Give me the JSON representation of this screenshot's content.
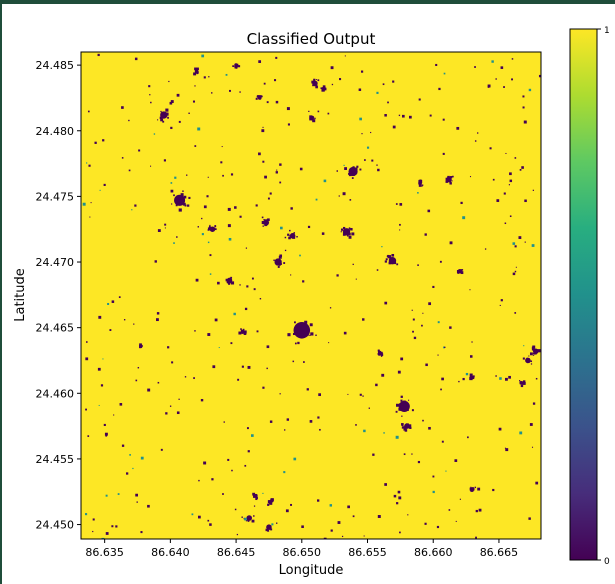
{
  "chart_data": {
    "type": "heatmap",
    "title": "Classified Output",
    "xlabel": "Longitude",
    "ylabel": "Latitude",
    "xlim": [
      86.6332,
      86.6682
    ],
    "ylim": [
      24.4489,
      24.486
    ],
    "x_ticks": [
      "86.635",
      "86.640",
      "86.645",
      "86.650",
      "86.655",
      "86.660",
      "86.665"
    ],
    "y_ticks": [
      "24.485",
      "24.480",
      "24.475",
      "24.470",
      "24.465",
      "24.460",
      "24.455",
      "24.450"
    ],
    "colorbar": {
      "colormap": "viridis",
      "min": 0,
      "max": 1,
      "tick_labels": [
        "0",
        "1"
      ]
    },
    "background_class": 1,
    "colors": {
      "class_1": "#fde725",
      "class_0": "#440154"
    },
    "class_0_patches": [
      {
        "lon": 86.6395,
        "lat": 24.4812,
        "r": 0.0004
      },
      {
        "lon": 86.6407,
        "lat": 24.4747,
        "r": 0.0006
      },
      {
        "lon": 86.642,
        "lat": 24.4845,
        "r": 0.0002
      },
      {
        "lon": 86.645,
        "lat": 24.4849,
        "r": 0.0002
      },
      {
        "lon": 86.6432,
        "lat": 24.4725,
        "r": 0.0003
      },
      {
        "lon": 86.6445,
        "lat": 24.4686,
        "r": 0.0003
      },
      {
        "lon": 86.6473,
        "lat": 24.473,
        "r": 0.0003
      },
      {
        "lon": 86.6493,
        "lat": 24.472,
        "r": 0.0003
      },
      {
        "lon": 86.6482,
        "lat": 24.47,
        "r": 0.0004
      },
      {
        "lon": 86.65,
        "lat": 24.4648,
        "r": 0.0009
      },
      {
        "lon": 86.651,
        "lat": 24.4836,
        "r": 0.0003
      },
      {
        "lon": 86.6517,
        "lat": 24.4832,
        "r": 0.0002
      },
      {
        "lon": 86.6534,
        "lat": 24.4723,
        "r": 0.0004
      },
      {
        "lon": 86.6539,
        "lat": 24.4769,
        "r": 0.0005
      },
      {
        "lon": 86.6569,
        "lat": 24.4701,
        "r": 0.0004
      },
      {
        "lon": 86.6559,
        "lat": 24.463,
        "r": 0.0002
      },
      {
        "lon": 86.6578,
        "lat": 24.459,
        "r": 0.0006
      },
      {
        "lon": 86.658,
        "lat": 24.4575,
        "r": 0.0003
      },
      {
        "lon": 86.6612,
        "lat": 24.4763,
        "r": 0.0003
      },
      {
        "lon": 86.662,
        "lat": 24.4693,
        "r": 0.0002
      },
      {
        "lon": 86.6678,
        "lat": 24.4632,
        "r": 0.0003
      },
      {
        "lon": 86.6672,
        "lat": 24.4625,
        "r": 0.0003
      },
      {
        "lon": 86.6667,
        "lat": 24.4608,
        "r": 0.0002
      },
      {
        "lon": 86.646,
        "lat": 24.4505,
        "r": 0.0003
      },
      {
        "lon": 86.6465,
        "lat": 24.4522,
        "r": 0.0002
      },
      {
        "lon": 86.6475,
        "lat": 24.4498,
        "r": 0.0003
      },
      {
        "lon": 86.6476,
        "lat": 24.4517,
        "r": 0.0002
      },
      {
        "lon": 86.6455,
        "lat": 24.4647,
        "r": 0.0002
      },
      {
        "lon": 86.6378,
        "lat": 24.4636,
        "r": 0.0001
      },
      {
        "lon": 86.663,
        "lat": 24.4527,
        "r": 0.0002
      },
      {
        "lon": 86.6629,
        "lat": 24.4612,
        "r": 0.0001
      },
      {
        "lon": 86.6508,
        "lat": 24.481,
        "r": 0.0002
      },
      {
        "lon": 86.6468,
        "lat": 24.4825,
        "r": 0.0002
      },
      {
        "lon": 86.659,
        "lat": 24.476,
        "r": 0.0002
      }
    ]
  }
}
